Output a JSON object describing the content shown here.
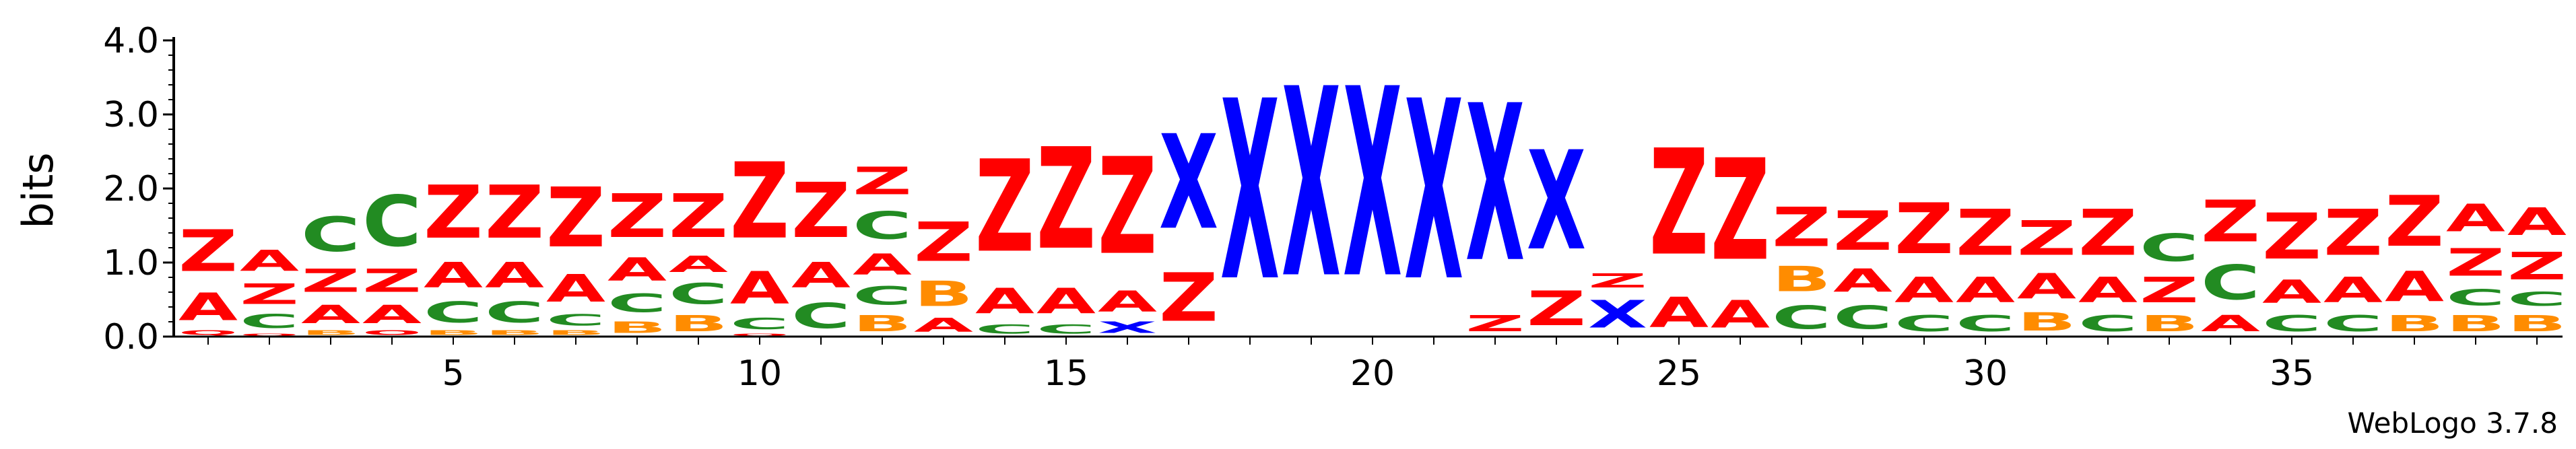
{
  "chart_data": {
    "type": "sequence-logo",
    "ylabel": "bits",
    "ylim": [
      0,
      4.0
    ],
    "yticks": [
      {
        "value": 0.0,
        "label": "0.0"
      },
      {
        "value": 1.0,
        "label": "1.0"
      },
      {
        "value": 2.0,
        "label": "2.0"
      },
      {
        "value": 3.0,
        "label": "3.0"
      },
      {
        "value": 4.0,
        "label": "4.0"
      }
    ],
    "xticks": [
      {
        "value": 5,
        "label": "5"
      },
      {
        "value": 10,
        "label": "10"
      },
      {
        "value": 15,
        "label": "15"
      },
      {
        "value": 20,
        "label": "20"
      },
      {
        "value": 25,
        "label": "25"
      },
      {
        "value": 30,
        "label": "30"
      },
      {
        "value": 35,
        "label": "35"
      }
    ],
    "positions": 39,
    "footer": "WebLogo 3.7.8",
    "colors": {
      "Z": "#ff0000",
      "A": "#ff0000",
      "Q": "#ff0000",
      "X": "#0000ff",
      "C": "#228b22",
      "B": "#ff8c00"
    },
    "columns": [
      [
        [
          "Q",
          0.1
        ],
        [
          "A",
          0.6
        ],
        [
          "Z",
          0.9
        ]
      ],
      [
        [
          "O",
          0.05
        ],
        [
          "C",
          0.3
        ],
        [
          "Z",
          0.45
        ],
        [
          "A",
          0.45
        ]
      ],
      [
        [
          "B",
          0.1
        ],
        [
          "A",
          0.4
        ],
        [
          "Z",
          0.5
        ],
        [
          "C",
          0.75
        ]
      ],
      [
        [
          "O",
          0.1
        ],
        [
          "A",
          0.4
        ],
        [
          "Z",
          0.5
        ],
        [
          "C",
          1.1
        ]
      ],
      [
        [
          "B",
          0.1
        ],
        [
          "C",
          0.45
        ],
        [
          "A",
          0.55
        ],
        [
          "Z",
          1.15
        ]
      ],
      [
        [
          "B",
          0.1
        ],
        [
          "C",
          0.45
        ],
        [
          "A",
          0.55
        ],
        [
          "Z",
          1.15
        ]
      ],
      [
        [
          "B",
          0.1
        ],
        [
          "C",
          0.25
        ],
        [
          "A",
          0.6
        ],
        [
          "Z",
          1.3
        ]
      ],
      [
        [
          "B",
          0.25
        ],
        [
          "C",
          0.4
        ],
        [
          "A",
          0.5
        ],
        [
          "Z",
          0.95
        ]
      ],
      [
        [
          "B",
          0.35
        ],
        [
          "C",
          0.45
        ],
        [
          "A",
          0.35
        ],
        [
          "Z",
          0.95
        ]
      ],
      [
        [
          "Q",
          0.05
        ],
        [
          "C",
          0.25
        ],
        [
          "A",
          0.7
        ],
        [
          "Z",
          1.65
        ]
      ],
      [
        [
          "C",
          0.55
        ],
        [
          "A",
          0.55
        ],
        [
          "Z",
          1.2
        ]
      ],
      [
        [
          "B",
          0.35
        ],
        [
          "C",
          0.4
        ],
        [
          "A",
          0.45
        ],
        [
          "C",
          0.6
        ],
        [
          "Z",
          0.6
        ]
      ],
      [
        [
          "A",
          0.3
        ],
        [
          "B",
          0.55
        ],
        [
          "Z",
          0.85
        ]
      ],
      [
        [
          "C",
          0.2
        ],
        [
          "A",
          0.55
        ],
        [
          "Z",
          2.0
        ]
      ],
      [
        [
          "C",
          0.2
        ],
        [
          "A",
          0.55
        ],
        [
          "Z",
          2.2
        ]
      ],
      [
        [
          "X",
          0.25
        ],
        [
          "A",
          0.45
        ],
        [
          "Z",
          2.1
        ]
      ],
      [
        [
          "Z",
          1.05
        ],
        [
          "X",
          2.05
        ]
      ],
      [
        [
          "X",
          3.9
        ]
      ],
      [
        [
          "X",
          4.1
        ]
      ],
      [
        [
          "X",
          4.1
        ]
      ],
      [
        [
          "X",
          3.9
        ]
      ],
      [
        [
          "Z",
          0.35
        ],
        [
          "X",
          3.4
        ]
      ],
      [
        [
          "Z",
          0.75
        ],
        [
          "X",
          2.15
        ]
      ],
      [
        [
          "X",
          0.6
        ],
        [
          "Z",
          0.3
        ]
      ],
      [
        [
          "A",
          0.65
        ],
        [
          "Z",
          2.3
        ]
      ],
      [
        [
          "A",
          0.6
        ],
        [
          "Z",
          2.2
        ]
      ],
      [
        [
          "C",
          0.5
        ],
        [
          "B",
          0.55
        ],
        [
          "Z",
          0.85
        ]
      ],
      [
        [
          "C",
          0.5
        ],
        [
          "A",
          0.5
        ],
        [
          "Z",
          0.85
        ]
      ],
      [
        [
          "C",
          0.35
        ],
        [
          "A",
          0.55
        ],
        [
          "Z",
          1.1
        ]
      ],
      [
        [
          "C",
          0.35
        ],
        [
          "A",
          0.55
        ],
        [
          "Z",
          1.0
        ]
      ],
      [
        [
          "B",
          0.4
        ],
        [
          "A",
          0.55
        ],
        [
          "Z",
          0.75
        ]
      ],
      [
        [
          "C",
          0.35
        ],
        [
          "A",
          0.55
        ],
        [
          "Z",
          1.0
        ]
      ],
      [
        [
          "B",
          0.35
        ],
        [
          "Z",
          0.55
        ],
        [
          "C",
          0.6
        ]
      ],
      [
        [
          "A",
          0.35
        ],
        [
          "C",
          0.75
        ],
        [
          "Z",
          0.9
        ]
      ],
      [
        [
          "C",
          0.35
        ],
        [
          "A",
          0.5
        ],
        [
          "Z",
          1.0
        ]
      ],
      [
        [
          "C",
          0.35
        ],
        [
          "A",
          0.55
        ],
        [
          "Z",
          1.0
        ]
      ],
      [
        [
          "B",
          0.35
        ],
        [
          "A",
          0.65
        ],
        [
          "Z",
          1.1
        ]
      ],
      [
        [
          "B",
          0.35
        ],
        [
          "C",
          0.35
        ],
        [
          "Z",
          0.6
        ],
        [
          "A",
          0.6
        ]
      ],
      [
        [
          "B",
          0.35
        ],
        [
          "C",
          0.3
        ],
        [
          "Z",
          0.6
        ],
        [
          "A",
          0.6
        ]
      ]
    ]
  }
}
